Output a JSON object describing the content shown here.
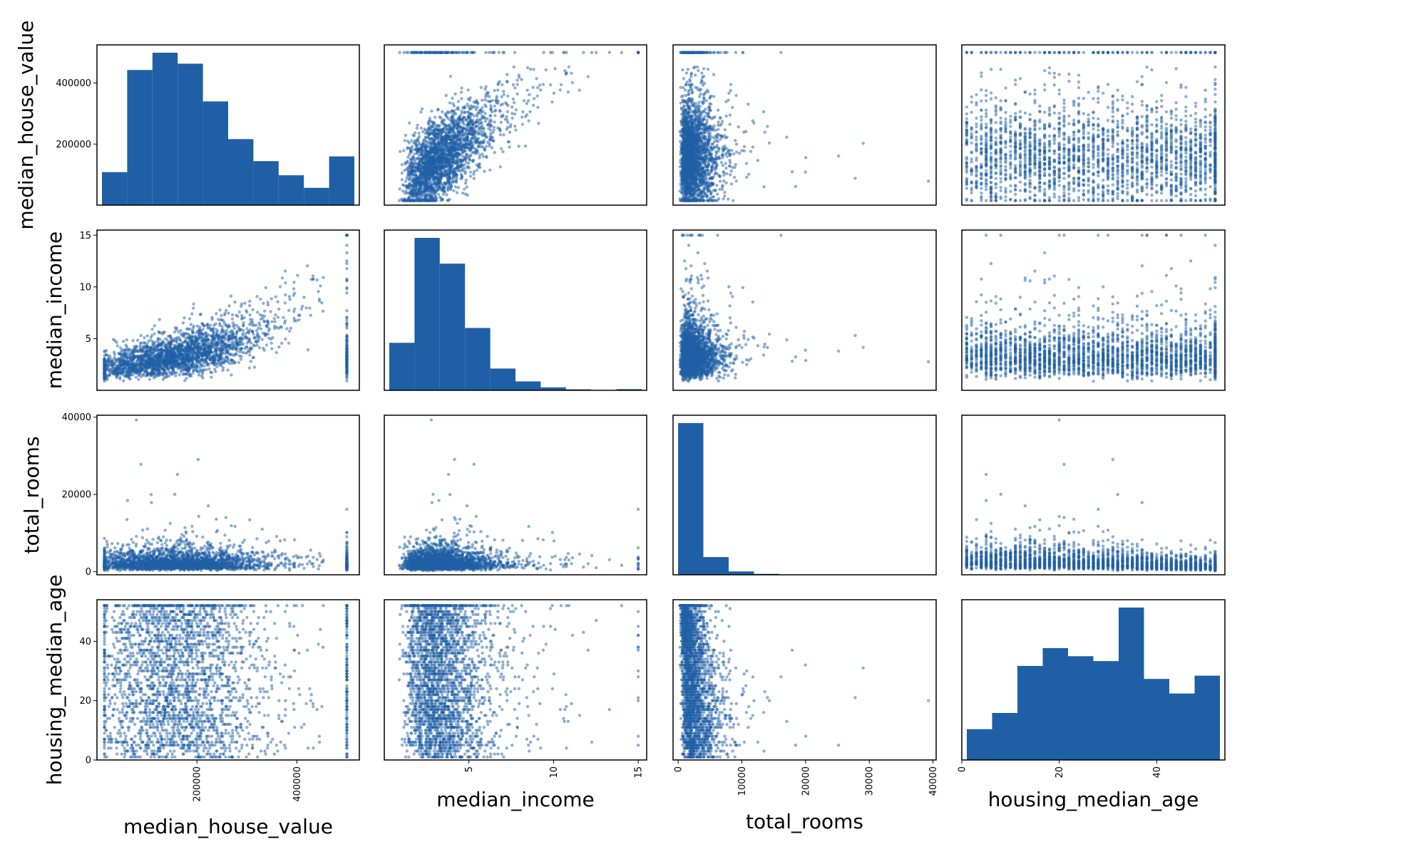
{
  "chart_data": {
    "type": "scatter",
    "title": "",
    "variables": [
      "median_house_value",
      "median_income",
      "total_rooms",
      "housing_median_age"
    ],
    "axis_labels": {
      "median_house_value": "median_house_value",
      "median_income": "median_income",
      "total_rooms": "total_rooms",
      "housing_median_age": "housing_median_age"
    },
    "ranges": {
      "median_house_value": [
        0,
        525000
      ],
      "median_income": [
        0,
        15.5
      ],
      "total_rooms": [
        -800,
        40500
      ],
      "housing_median_age": [
        0,
        54
      ]
    },
    "ticks": {
      "median_house_value": {
        "values": [
          200000,
          400000
        ],
        "labels": [
          "200000",
          "400000"
        ]
      },
      "median_income": {
        "values": [
          5,
          10,
          15
        ],
        "labels": [
          "5",
          "10",
          "15"
        ]
      },
      "total_rooms": {
        "values": [
          0,
          20000,
          40000
        ],
        "labels": [
          "0",
          "20000",
          "40000"
        ],
        "x_values": [
          0,
          10000,
          20000,
          30000,
          40000
        ],
        "x_labels": [
          "0",
          "10000",
          "20000",
          "30000",
          "40000"
        ]
      },
      "housing_median_age": {
        "values": [
          0,
          20,
          40
        ],
        "labels": [
          "0",
          "20",
          "40"
        ],
        "x_values": [
          0,
          20,
          40
        ],
        "x_labels": [
          "0",
          "20",
          "40"
        ]
      }
    },
    "histograms": {
      "median_house_value": {
        "bin_edges": [
          15000,
          64000,
          113000,
          162000,
          211000,
          260000,
          309000,
          358000,
          407000,
          456000,
          505000
        ],
        "counts": [
          1050,
          4300,
          4850,
          4500,
          3300,
          2100,
          1400,
          950,
          550,
          1550
        ]
      },
      "median_income": {
        "bin_edges": [
          0.5,
          1.95,
          3.4,
          4.85,
          6.3,
          7.75,
          9.2,
          10.65,
          12.1,
          13.55,
          15.0
        ],
        "counts": [
          2400,
          7700,
          6400,
          3150,
          1100,
          450,
          150,
          50,
          20,
          60
        ]
      },
      "total_rooms": {
        "bin_edges": [
          0,
          3930,
          7860,
          11790,
          15720,
          19650,
          23580,
          27510,
          31440,
          35370,
          39300
        ],
        "counts": [
          18000,
          2100,
          400,
          110,
          40,
          15,
          8,
          5,
          3,
          2
        ]
      },
      "housing_median_age": {
        "bin_edges": [
          1,
          6.1,
          11.2,
          16.3,
          21.4,
          26.5,
          31.6,
          36.7,
          41.8,
          46.9,
          52
        ],
        "counts": [
          950,
          1450,
          2900,
          3450,
          3200,
          3050,
          4700,
          2500,
          2050,
          2600
        ]
      }
    },
    "marker_color": "#1f5fa6",
    "point_alpha": 0.5,
    "grid": false,
    "legend": "none"
  }
}
